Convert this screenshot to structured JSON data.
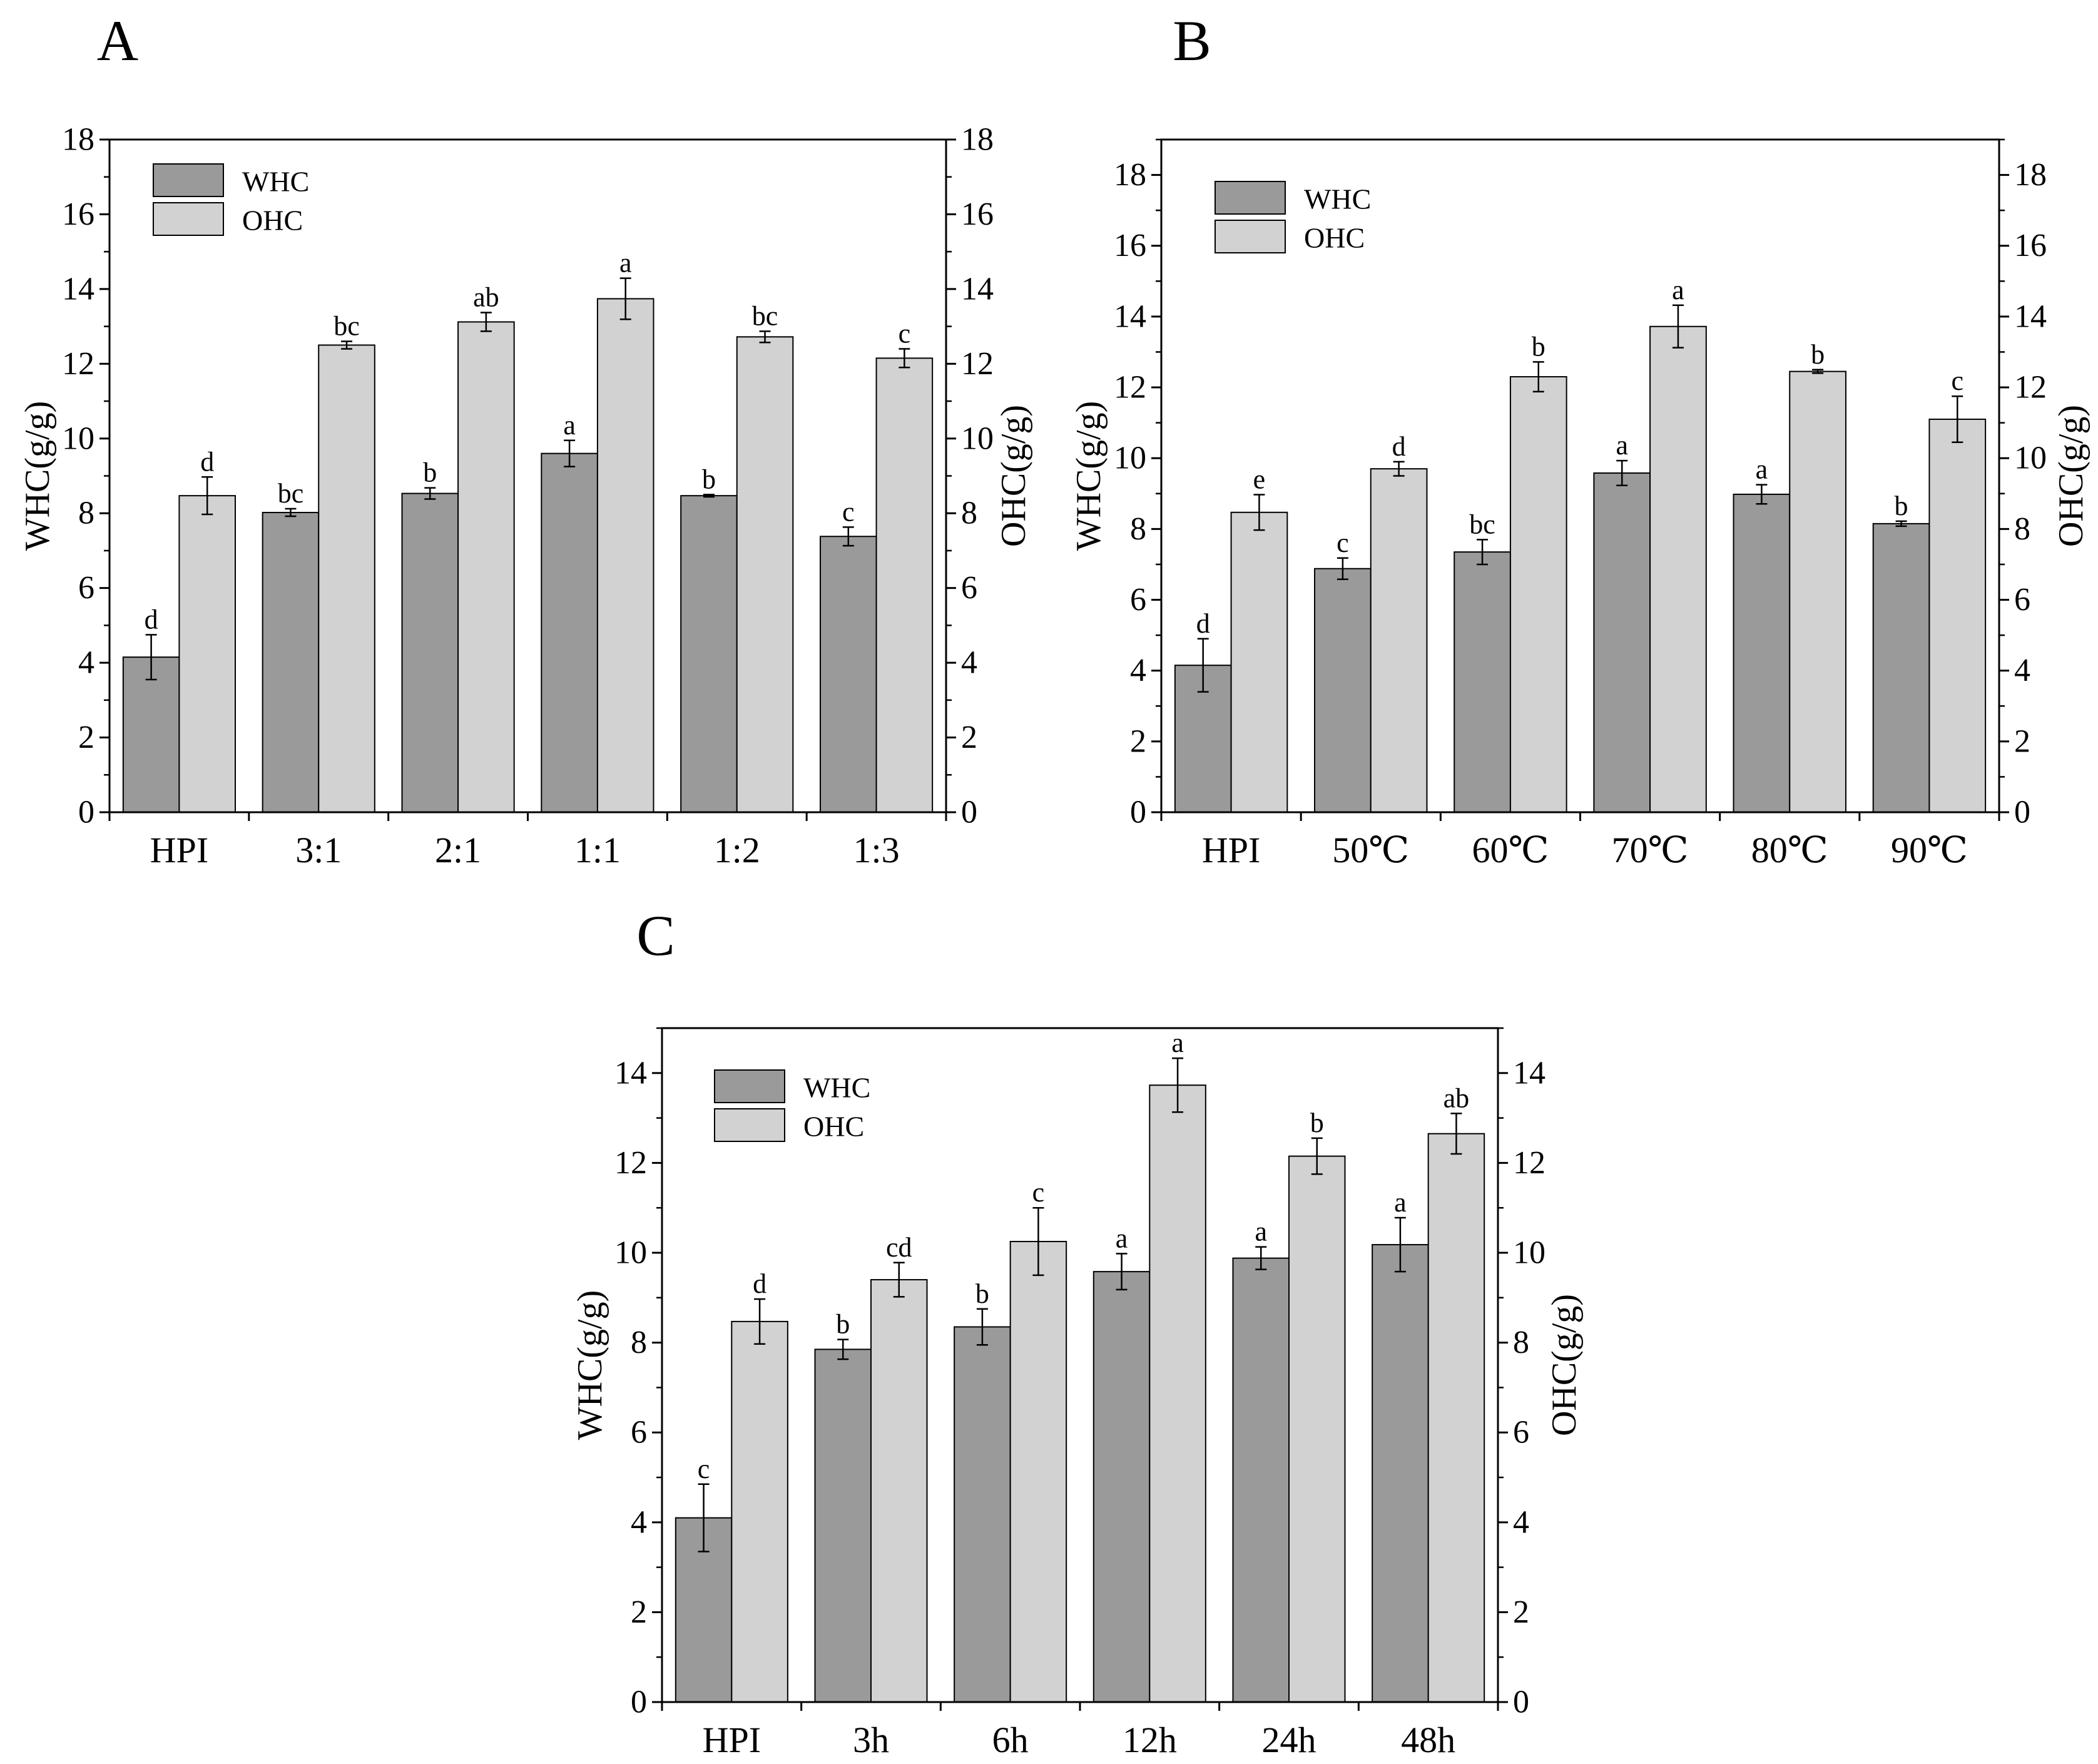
{
  "figure": {
    "colors": {
      "whc": "#9a9a9a",
      "ohc": "#d2d2d2",
      "stroke": "#000000",
      "background": "#ffffff"
    }
  },
  "chart_data": [
    {
      "id": "A",
      "type": "bar",
      "panel_label": "A",
      "categories": [
        "HPI",
        "3:1",
        "2:1",
        "1:1",
        "1:2",
        "1:3"
      ],
      "ylim": [
        0,
        18
      ],
      "ticks": [
        0,
        2,
        4,
        6,
        8,
        10,
        12,
        14,
        16,
        18
      ],
      "ylabel_left": "WHC(g/g)",
      "ylabel_right": "OHC(g/g)",
      "legend_position": "top-left",
      "series": [
        {
          "name": "WHC",
          "color": "#9a9a9a",
          "values": [
            4.15,
            8.02,
            8.53,
            9.6,
            8.47,
            7.38
          ],
          "errors": [
            0.6,
            0.1,
            0.15,
            0.35,
            0.03,
            0.25
          ],
          "labels": [
            "d",
            "bc",
            "b",
            "a",
            "b",
            "c"
          ]
        },
        {
          "name": "OHC",
          "color": "#d2d2d2",
          "values": [
            8.47,
            12.5,
            13.12,
            13.74,
            12.72,
            12.15
          ],
          "errors": [
            0.5,
            0.1,
            0.25,
            0.55,
            0.15,
            0.25
          ],
          "labels": [
            "d",
            "bc",
            "ab",
            "a",
            "bc",
            "c"
          ]
        }
      ]
    },
    {
      "id": "B",
      "type": "bar",
      "panel_label": "B",
      "categories": [
        "HPI",
        "50℃",
        "60℃",
        "70℃",
        "80℃",
        "90℃"
      ],
      "ylim": [
        0,
        19
      ],
      "ticks": [
        0,
        2,
        4,
        6,
        8,
        10,
        12,
        14,
        16,
        18
      ],
      "ylabel_left": "WHC(g/g)",
      "ylabel_right": "OHC(g/g)",
      "legend_position": "top-left",
      "series": [
        {
          "name": "WHC",
          "color": "#9a9a9a",
          "values": [
            4.15,
            6.88,
            7.35,
            9.58,
            8.98,
            8.15
          ],
          "errors": [
            0.75,
            0.3,
            0.35,
            0.35,
            0.27,
            0.07
          ],
          "labels": [
            "d",
            "c",
            "bc",
            "a",
            "a",
            "b"
          ]
        },
        {
          "name": "OHC",
          "color": "#d2d2d2",
          "values": [
            8.47,
            9.7,
            12.3,
            13.72,
            12.45,
            11.1
          ],
          "errors": [
            0.5,
            0.2,
            0.42,
            0.6,
            0.05,
            0.65
          ],
          "labels": [
            "e",
            "d",
            "b",
            "a",
            "b",
            "c"
          ]
        }
      ]
    },
    {
      "id": "C",
      "type": "bar",
      "panel_label": "C",
      "categories": [
        "HPI",
        "3h",
        "6h",
        "12h",
        "24h",
        "48h"
      ],
      "ylim": [
        0,
        15
      ],
      "ticks": [
        0,
        2,
        4,
        6,
        8,
        10,
        12,
        14
      ],
      "ylabel_left": "WHC(g/g)",
      "ylabel_right": "OHC(g/g)",
      "legend_position": "top-left",
      "series": [
        {
          "name": "WHC",
          "color": "#9a9a9a",
          "values": [
            4.1,
            7.85,
            8.35,
            9.58,
            9.88,
            10.18
          ],
          "errors": [
            0.75,
            0.22,
            0.4,
            0.4,
            0.25,
            0.6
          ],
          "labels": [
            "c",
            "b",
            "b",
            "a",
            "a",
            "a"
          ]
        },
        {
          "name": "OHC",
          "color": "#d2d2d2",
          "values": [
            8.47,
            9.4,
            10.25,
            13.73,
            12.15,
            12.65
          ],
          "errors": [
            0.5,
            0.38,
            0.75,
            0.6,
            0.4,
            0.45
          ],
          "labels": [
            "d",
            "cd",
            "c",
            "a",
            "b",
            "ab"
          ]
        }
      ]
    }
  ]
}
